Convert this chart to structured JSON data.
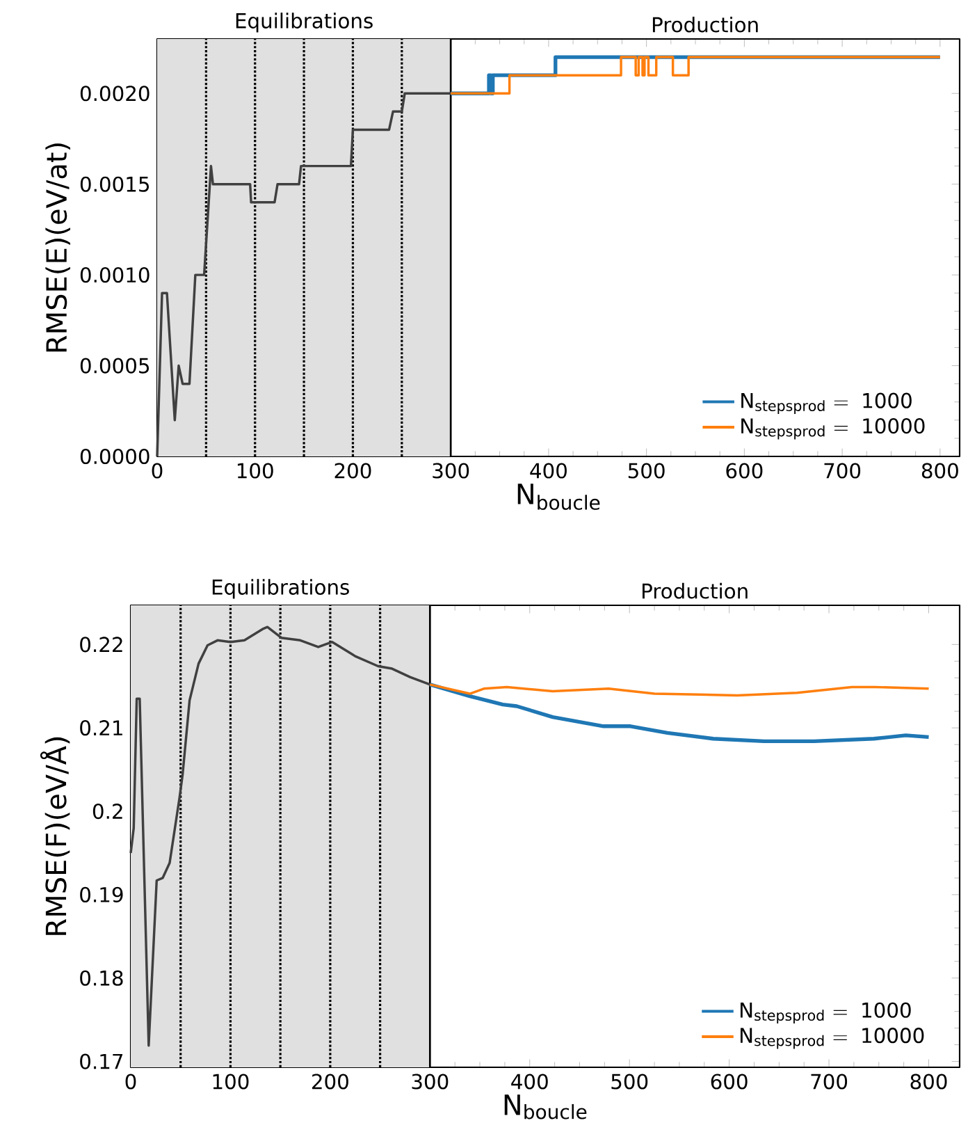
{
  "chart_data": [
    {
      "type": "line",
      "xlabel": "N$_{boucle}$",
      "ylabel": "RMSE(E)(eV/at)",
      "xlim": [
        0,
        820
      ],
      "ylim": [
        0,
        0.0023
      ],
      "xticks": [
        0,
        100,
        200,
        300,
        400,
        500,
        600,
        700,
        800
      ],
      "yticks": [
        {
          "value": 0,
          "label": "0.0000"
        },
        {
          "value": 0.0005,
          "label": "0.0005"
        },
        {
          "value": 0.001,
          "label": "0.0010"
        },
        {
          "value": 0.0015,
          "label": "0.0015"
        },
        {
          "value": 0.002,
          "label": "0.0020"
        }
      ],
      "series": [
        {
          "color": "#404040",
          "x": [
            0,
            5,
            10,
            18,
            22,
            26,
            33,
            39,
            48,
            55,
            57,
            95,
            96,
            120,
            123,
            145,
            147,
            198,
            200,
            237,
            241,
            250,
            253,
            300
          ],
          "values": [
            0,
            0.0009,
            0.0009,
            0.0002,
            0.0005,
            0.0004,
            0.0004,
            0.001,
            0.001,
            0.0016,
            0.0015,
            0.0015,
            0.0014,
            0.0014,
            0.0015,
            0.0015,
            0.0016,
            0.0016,
            0.0018,
            0.0018,
            0.0019,
            0.0019,
            0.002,
            0.002
          ]
        },
        {
          "name": "\\mathrm{N}_{\\mathrm{stepsprod}}\\mathrm{\\ =\\ 1000}",
          "color": "#1f77b4",
          "x": [
            300,
            339,
            339,
            341,
            341,
            343,
            343,
            407,
            407,
            800
          ],
          "values": [
            0.002,
            0.002,
            0.0021,
            0.0021,
            0.002,
            0.002,
            0.0021,
            0.0021,
            0.0022,
            0.0022
          ]
        },
        {
          "name": "\\mathrm{N}_{\\mathrm{stepsprod}}\\mathrm{\\ =\\ 10000}",
          "color": "#ff7f0e",
          "x": [
            300,
            360,
            360,
            474,
            474,
            489,
            489,
            492,
            492,
            496,
            496,
            498,
            498,
            502,
            502,
            510,
            510,
            527,
            527,
            543,
            543,
            800
          ],
          "values": [
            0.002,
            0.002,
            0.0021,
            0.0021,
            0.0022,
            0.0022,
            0.0021,
            0.0021,
            0.0022,
            0.0022,
            0.0021,
            0.0021,
            0.0022,
            0.0022,
            0.0021,
            0.0021,
            0.0022,
            0.0022,
            0.0021,
            0.0021,
            0.0022,
            0.0022
          ]
        }
      ],
      "bands": [
        {
          "axis": "x",
          "from": 0,
          "to": 300,
          "label": "Equilibrations",
          "color": "#e0e0e0"
        }
      ],
      "ref_lines": [
        {
          "axis": "x",
          "value": 50,
          "line_style": "dotted"
        },
        {
          "axis": "x",
          "value": 100,
          "line_style": "dotted"
        },
        {
          "axis": "x",
          "value": 150,
          "line_style": "dotted"
        },
        {
          "axis": "x",
          "value": 200,
          "line_style": "dotted"
        },
        {
          "axis": "x",
          "value": 250,
          "line_style": "dotted"
        },
        {
          "axis": "x",
          "value": 300,
          "line_style": "solid"
        }
      ],
      "annotations": [
        "Production"
      ],
      "legend": "bottom right"
    },
    {
      "type": "line",
      "xlabel": "N$_{boucle}$",
      "ylabel": "RMSE(F)(eV/Å)",
      "xlim": [
        0,
        831
      ],
      "ylim": [
        0.1693,
        0.2247
      ],
      "xticks": [
        0,
        100,
        200,
        300,
        400,
        500,
        600,
        700,
        800
      ],
      "yticks": [
        0.17,
        0.18,
        0.19,
        0.2,
        0.21,
        0.22
      ],
      "series": [
        {
          "color": "#404040",
          "x": [
            0,
            3,
            6,
            9,
            18,
            26,
            32,
            39,
            49,
            52,
            59,
            68,
            77,
            87,
            100,
            114,
            133,
            137,
            151,
            170,
            188,
            202,
            225,
            248,
            262,
            280,
            300
          ],
          "values": [
            0.195,
            0.198,
            0.2135,
            0.2135,
            0.1719,
            0.1917,
            0.192,
            0.1938,
            0.2017,
            0.2044,
            0.2133,
            0.2177,
            0.2199,
            0.2205,
            0.2203,
            0.2205,
            0.2219,
            0.2221,
            0.2208,
            0.2205,
            0.2197,
            0.2203,
            0.2186,
            0.2174,
            0.2171,
            0.2161,
            0.2152
          ]
        },
        {
          "name": "\\mathrm{N}_{\\mathrm{stepsprod}}\\mathrm{\\ =\\ 1000}",
          "color": "#1f77b4",
          "x": [
            300,
            340,
            373,
            387,
            423,
            474,
            501,
            538,
            584,
            635,
            685,
            745,
            777,
            800
          ],
          "values": [
            0.2152,
            0.2138,
            0.2128,
            0.2126,
            0.2113,
            0.2102,
            0.2102,
            0.2094,
            0.2087,
            0.2084,
            0.2084,
            0.2087,
            0.2091,
            0.2089
          ]
        },
        {
          "name": "\\mathrm{N}_{\\mathrm{stepsprod}}\\mathrm{\\ =\\ 10000}",
          "color": "#ff7f0e",
          "x": [
            300,
            340,
            354,
            377,
            423,
            479,
            525,
            608,
            668,
            723,
            746,
            800
          ],
          "values": [
            0.2152,
            0.2141,
            0.2147,
            0.2149,
            0.2144,
            0.2147,
            0.2141,
            0.2139,
            0.2142,
            0.2149,
            0.2149,
            0.2147
          ]
        }
      ],
      "bands": [
        {
          "axis": "x",
          "from": 0,
          "to": 300,
          "label": "Equilibrations",
          "color": "#e0e0e0"
        }
      ],
      "ref_lines": [
        {
          "axis": "x",
          "value": 50,
          "line_style": "dotted"
        },
        {
          "axis": "x",
          "value": 100,
          "line_style": "dotted"
        },
        {
          "axis": "x",
          "value": 150,
          "line_style": "dotted"
        },
        {
          "axis": "x",
          "value": 200,
          "line_style": "dotted"
        },
        {
          "axis": "x",
          "value": 250,
          "line_style": "dotted"
        },
        {
          "axis": "x",
          "value": 300,
          "line_style": "solid"
        }
      ],
      "annotations": [
        "Production"
      ],
      "legend": "bottom right"
    }
  ]
}
